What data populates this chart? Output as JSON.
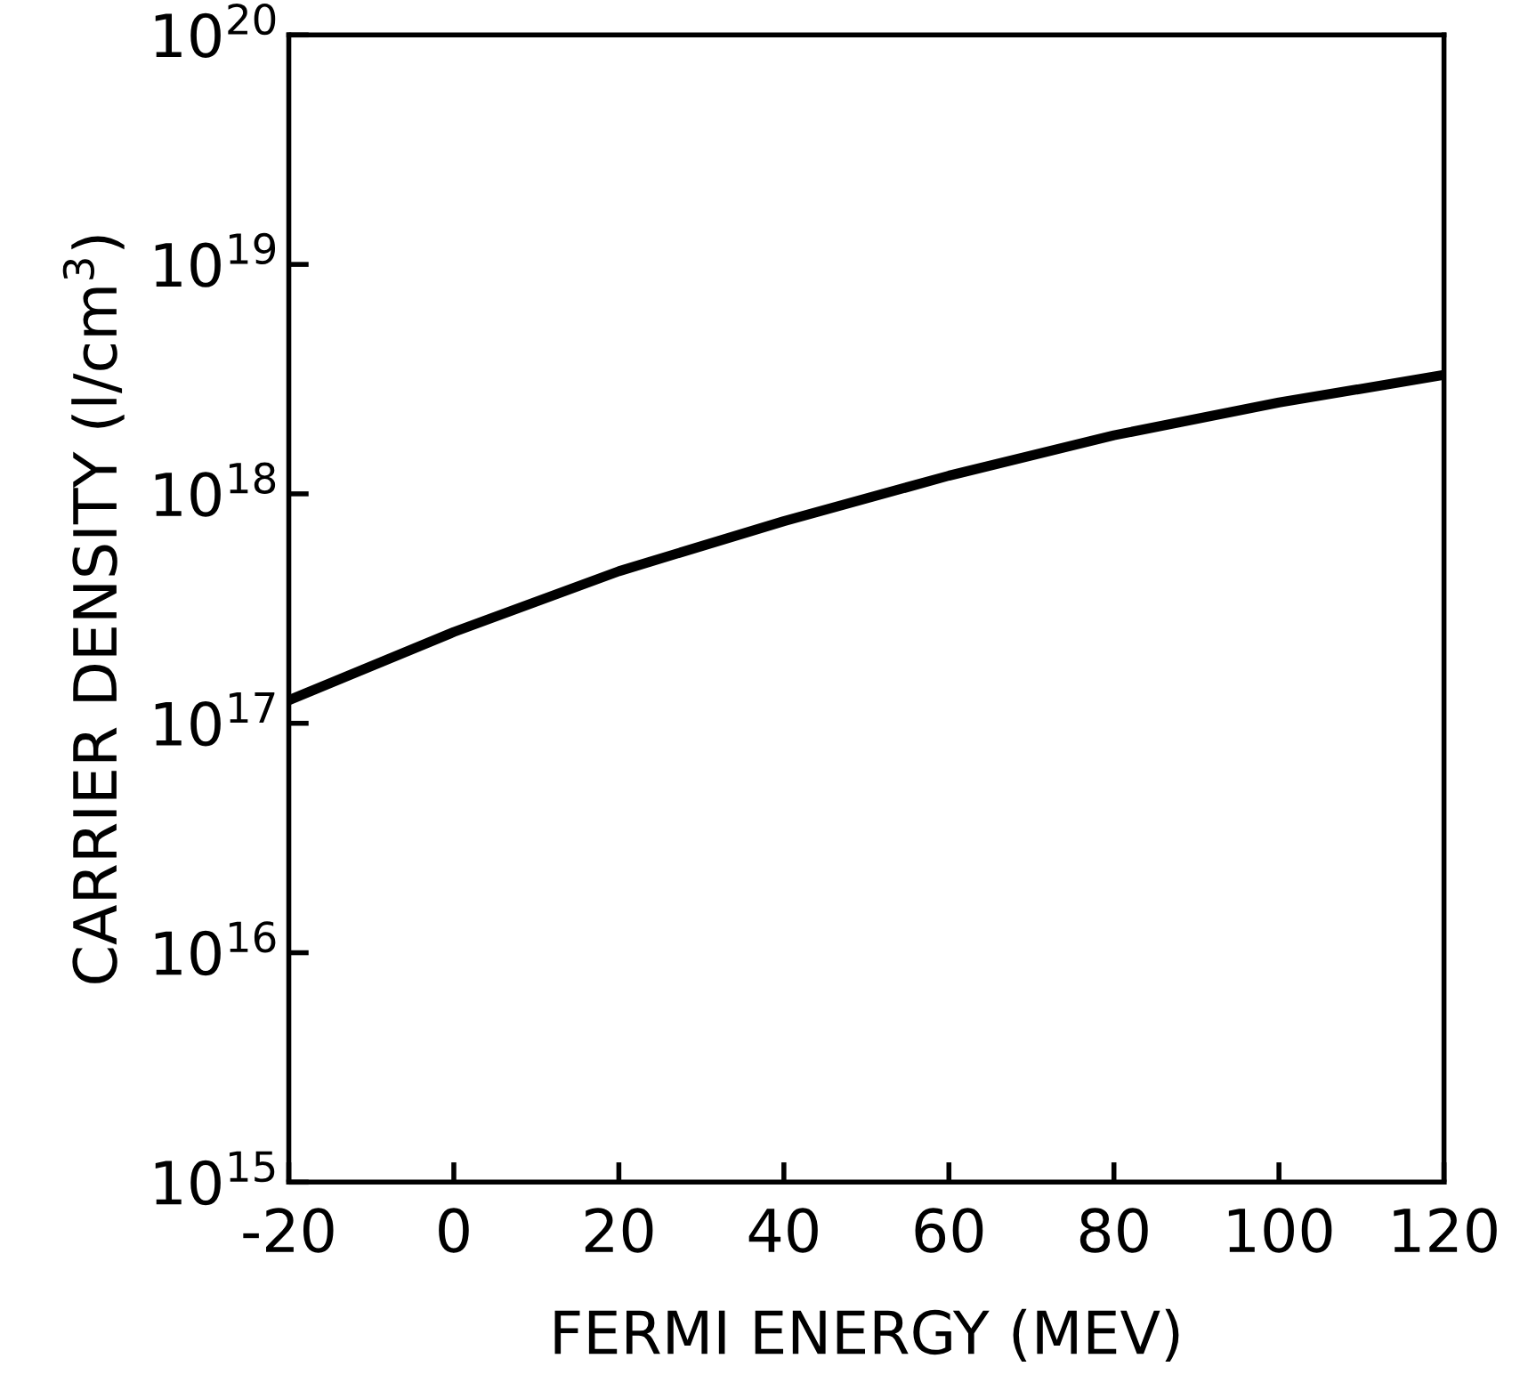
{
  "chart_data": {
    "type": "line",
    "xlabel": "FERMI ENERGY (MEV)",
    "ylabel": "CARRIER DENSITY (l/cm$^{3}$)",
    "x": [
      -20,
      0,
      20,
      40,
      60,
      80,
      100,
      120
    ],
    "series": [
      {
        "color": "#000000",
        "values": [
          1.26e+17,
          2.5e+17,
          4.6e+17,
          7.6e+17,
          1.2e+18,
          1.8e+18,
          2.5e+18,
          3.3e+18
        ]
      }
    ],
    "log": "y",
    "xlim": [
      -20,
      120
    ],
    "ylim": [
      1000000000000000.0,
      1e+20
    ],
    "xticks": [
      -20,
      0,
      20,
      40,
      60,
      80,
      100,
      120
    ],
    "yticks": [
      {
        "value": 1000000000000000.0,
        "label": "10$^{15}$"
      },
      {
        "value": 1e+16,
        "label": "10$^{16}$"
      },
      {
        "value": 1e+17,
        "label": "10$^{17}$"
      },
      {
        "value": 1e+18,
        "label": "10$^{18}$"
      },
      {
        "value": 1e+19,
        "label": "10$^{19}$"
      },
      {
        "value": 1e+20,
        "label": "10$^{20}$"
      }
    ],
    "grid": false,
    "legend": false,
    "marker": "none",
    "line_style": "solid"
  }
}
